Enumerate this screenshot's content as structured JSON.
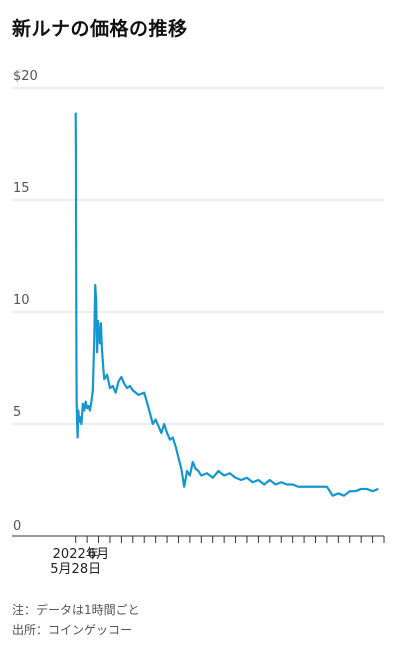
{
  "title": "新ルナの価格の推移",
  "chart_data": {
    "type": "line",
    "ylim": [
      0,
      20
    ],
    "y_ticks": [
      {
        "value": 20,
        "label": "$20"
      },
      {
        "value": 15,
        "label": "15"
      },
      {
        "value": 10,
        "label": "10"
      },
      {
        "value": 5,
        "label": "5"
      },
      {
        "value": 0,
        "label": "0"
      }
    ],
    "x_labels": [
      {
        "lines": [
          "2022年",
          "5月28日"
        ],
        "date": "2022-05-28"
      },
      {
        "lines": [
          "6月"
        ],
        "date": "2022-06-01"
      }
    ],
    "x_range": [
      "2022-05-27",
      "2022-07-21"
    ],
    "grid": true,
    "line_color": "#1596cf",
    "series": [
      {
        "name": "",
        "points": [
          [
            "2022-05-28T00:00",
            18.9
          ],
          [
            "2022-05-28T01:00",
            17.0
          ],
          [
            "2022-05-28T02:00",
            12.0
          ],
          [
            "2022-05-28T03:00",
            8.0
          ],
          [
            "2022-05-28T04:00",
            6.0
          ],
          [
            "2022-05-28T06:00",
            5.0
          ],
          [
            "2022-05-28T08:00",
            4.4
          ],
          [
            "2022-05-28T11:00",
            5.6
          ],
          [
            "2022-05-28T15:00",
            5.1
          ],
          [
            "2022-05-28T20:00",
            5.3
          ],
          [
            "2022-05-29T00:00",
            5.0
          ],
          [
            "2022-05-29T06:00",
            5.9
          ],
          [
            "2022-05-29T12:00",
            5.6
          ],
          [
            "2022-05-29T18:00",
            6.0
          ],
          [
            "2022-05-30T00:00",
            5.7
          ],
          [
            "2022-05-30T06:00",
            5.8
          ],
          [
            "2022-05-30T12:00",
            5.6
          ],
          [
            "2022-05-30T18:00",
            6.0
          ],
          [
            "2022-05-31T00:00",
            6.5
          ],
          [
            "2022-05-31T06:00",
            8.8
          ],
          [
            "2022-05-31T10:00",
            11.2
          ],
          [
            "2022-05-31T14:00",
            10.5
          ],
          [
            "2022-05-31T18:00",
            8.2
          ],
          [
            "2022-05-31T22:00",
            9.6
          ],
          [
            "2022-06-01T02:00",
            9.0
          ],
          [
            "2022-06-01T06:00",
            8.6
          ],
          [
            "2022-06-01T10:00",
            9.5
          ],
          [
            "2022-06-01T14:00",
            8.4
          ],
          [
            "2022-06-01T20:00",
            7.5
          ],
          [
            "2022-06-02T00:00",
            7.0
          ],
          [
            "2022-06-02T12:00",
            7.2
          ],
          [
            "2022-06-03T00:00",
            6.6
          ],
          [
            "2022-06-03T12:00",
            6.7
          ],
          [
            "2022-06-04T00:00",
            6.4
          ],
          [
            "2022-06-04T12:00",
            6.9
          ],
          [
            "2022-06-05T00:00",
            7.1
          ],
          [
            "2022-06-05T12:00",
            6.8
          ],
          [
            "2022-06-06T00:00",
            6.6
          ],
          [
            "2022-06-06T12:00",
            6.7
          ],
          [
            "2022-06-07T00:00",
            6.5
          ],
          [
            "2022-06-08T00:00",
            6.3
          ],
          [
            "2022-06-09T00:00",
            6.4
          ],
          [
            "2022-06-10T00:00",
            5.5
          ],
          [
            "2022-06-10T12:00",
            5.0
          ],
          [
            "2022-06-11T00:00",
            5.2
          ],
          [
            "2022-06-11T12:00",
            4.9
          ],
          [
            "2022-06-12T00:00",
            4.6
          ],
          [
            "2022-06-12T12:00",
            5.0
          ],
          [
            "2022-06-13T00:00",
            4.6
          ],
          [
            "2022-06-13T12:00",
            4.3
          ],
          [
            "2022-06-14T00:00",
            4.4
          ],
          [
            "2022-06-14T12:00",
            4.0
          ],
          [
            "2022-06-15T00:00",
            3.5
          ],
          [
            "2022-06-15T12:00",
            3.0
          ],
          [
            "2022-06-16T00:00",
            2.2
          ],
          [
            "2022-06-16T12:00",
            2.9
          ],
          [
            "2022-06-17T00:00",
            2.7
          ],
          [
            "2022-06-17T12:00",
            3.3
          ],
          [
            "2022-06-18T00:00",
            3.0
          ],
          [
            "2022-06-18T12:00",
            2.9
          ],
          [
            "2022-06-19T00:00",
            2.7
          ],
          [
            "2022-06-20T00:00",
            2.8
          ],
          [
            "2022-06-21T00:00",
            2.6
          ],
          [
            "2022-06-22T00:00",
            2.9
          ],
          [
            "2022-06-23T00:00",
            2.7
          ],
          [
            "2022-06-24T00:00",
            2.8
          ],
          [
            "2022-06-25T00:00",
            2.6
          ],
          [
            "2022-06-26T00:00",
            2.5
          ],
          [
            "2022-06-27T00:00",
            2.6
          ],
          [
            "2022-06-28T00:00",
            2.4
          ],
          [
            "2022-06-29T00:00",
            2.5
          ],
          [
            "2022-06-30T00:00",
            2.3
          ],
          [
            "2022-07-01T00:00",
            2.5
          ],
          [
            "2022-07-02T00:00",
            2.3
          ],
          [
            "2022-07-03T00:00",
            2.4
          ],
          [
            "2022-07-04T00:00",
            2.3
          ],
          [
            "2022-07-05T00:00",
            2.3
          ],
          [
            "2022-07-06T00:00",
            2.2
          ],
          [
            "2022-07-07T00:00",
            2.2
          ],
          [
            "2022-07-08T00:00",
            2.2
          ],
          [
            "2022-07-09T00:00",
            2.2
          ],
          [
            "2022-07-10T00:00",
            2.2
          ],
          [
            "2022-07-11T00:00",
            2.2
          ],
          [
            "2022-07-12T00:00",
            1.8
          ],
          [
            "2022-07-13T00:00",
            1.9
          ],
          [
            "2022-07-14T00:00",
            1.8
          ],
          [
            "2022-07-15T00:00",
            2.0
          ],
          [
            "2022-07-16T00:00",
            2.0
          ],
          [
            "2022-07-17T00:00",
            2.1
          ],
          [
            "2022-07-18T00:00",
            2.1
          ],
          [
            "2022-07-19T00:00",
            2.0
          ],
          [
            "2022-07-20T00:00",
            2.1
          ]
        ]
      }
    ]
  },
  "notes": {
    "note": "注：データは1時間ごと",
    "source": "出所：コインゲッコー"
  }
}
